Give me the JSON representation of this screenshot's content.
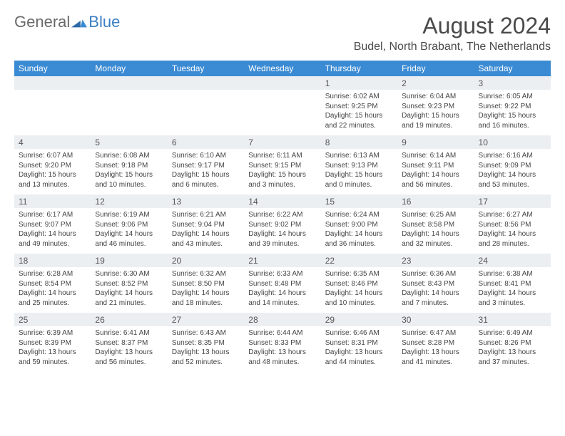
{
  "brand": {
    "general": "General",
    "blue": "Blue"
  },
  "title": "August 2024",
  "location": "Budel, North Brabant, The Netherlands",
  "colors": {
    "header_bg": "#3b8bd4",
    "header_text": "#ffffff",
    "daynum_bg": "#eceff1",
    "border": "#b8c4d0",
    "title_color": "#4a4a4a",
    "logo_gray": "#6a6a6a",
    "logo_blue": "#3b7fc4"
  },
  "days_of_week": [
    "Sunday",
    "Monday",
    "Tuesday",
    "Wednesday",
    "Thursday",
    "Friday",
    "Saturday"
  ],
  "weeks": [
    [
      {
        "n": "",
        "sr": "",
        "ss": "",
        "dl": ""
      },
      {
        "n": "",
        "sr": "",
        "ss": "",
        "dl": ""
      },
      {
        "n": "",
        "sr": "",
        "ss": "",
        "dl": ""
      },
      {
        "n": "",
        "sr": "",
        "ss": "",
        "dl": ""
      },
      {
        "n": "1",
        "sr": "Sunrise: 6:02 AM",
        "ss": "Sunset: 9:25 PM",
        "dl": "Daylight: 15 hours and 22 minutes."
      },
      {
        "n": "2",
        "sr": "Sunrise: 6:04 AM",
        "ss": "Sunset: 9:23 PM",
        "dl": "Daylight: 15 hours and 19 minutes."
      },
      {
        "n": "3",
        "sr": "Sunrise: 6:05 AM",
        "ss": "Sunset: 9:22 PM",
        "dl": "Daylight: 15 hours and 16 minutes."
      }
    ],
    [
      {
        "n": "4",
        "sr": "Sunrise: 6:07 AM",
        "ss": "Sunset: 9:20 PM",
        "dl": "Daylight: 15 hours and 13 minutes."
      },
      {
        "n": "5",
        "sr": "Sunrise: 6:08 AM",
        "ss": "Sunset: 9:18 PM",
        "dl": "Daylight: 15 hours and 10 minutes."
      },
      {
        "n": "6",
        "sr": "Sunrise: 6:10 AM",
        "ss": "Sunset: 9:17 PM",
        "dl": "Daylight: 15 hours and 6 minutes."
      },
      {
        "n": "7",
        "sr": "Sunrise: 6:11 AM",
        "ss": "Sunset: 9:15 PM",
        "dl": "Daylight: 15 hours and 3 minutes."
      },
      {
        "n": "8",
        "sr": "Sunrise: 6:13 AM",
        "ss": "Sunset: 9:13 PM",
        "dl": "Daylight: 15 hours and 0 minutes."
      },
      {
        "n": "9",
        "sr": "Sunrise: 6:14 AM",
        "ss": "Sunset: 9:11 PM",
        "dl": "Daylight: 14 hours and 56 minutes."
      },
      {
        "n": "10",
        "sr": "Sunrise: 6:16 AM",
        "ss": "Sunset: 9:09 PM",
        "dl": "Daylight: 14 hours and 53 minutes."
      }
    ],
    [
      {
        "n": "11",
        "sr": "Sunrise: 6:17 AM",
        "ss": "Sunset: 9:07 PM",
        "dl": "Daylight: 14 hours and 49 minutes."
      },
      {
        "n": "12",
        "sr": "Sunrise: 6:19 AM",
        "ss": "Sunset: 9:06 PM",
        "dl": "Daylight: 14 hours and 46 minutes."
      },
      {
        "n": "13",
        "sr": "Sunrise: 6:21 AM",
        "ss": "Sunset: 9:04 PM",
        "dl": "Daylight: 14 hours and 43 minutes."
      },
      {
        "n": "14",
        "sr": "Sunrise: 6:22 AM",
        "ss": "Sunset: 9:02 PM",
        "dl": "Daylight: 14 hours and 39 minutes."
      },
      {
        "n": "15",
        "sr": "Sunrise: 6:24 AM",
        "ss": "Sunset: 9:00 PM",
        "dl": "Daylight: 14 hours and 36 minutes."
      },
      {
        "n": "16",
        "sr": "Sunrise: 6:25 AM",
        "ss": "Sunset: 8:58 PM",
        "dl": "Daylight: 14 hours and 32 minutes."
      },
      {
        "n": "17",
        "sr": "Sunrise: 6:27 AM",
        "ss": "Sunset: 8:56 PM",
        "dl": "Daylight: 14 hours and 28 minutes."
      }
    ],
    [
      {
        "n": "18",
        "sr": "Sunrise: 6:28 AM",
        "ss": "Sunset: 8:54 PM",
        "dl": "Daylight: 14 hours and 25 minutes."
      },
      {
        "n": "19",
        "sr": "Sunrise: 6:30 AM",
        "ss": "Sunset: 8:52 PM",
        "dl": "Daylight: 14 hours and 21 minutes."
      },
      {
        "n": "20",
        "sr": "Sunrise: 6:32 AM",
        "ss": "Sunset: 8:50 PM",
        "dl": "Daylight: 14 hours and 18 minutes."
      },
      {
        "n": "21",
        "sr": "Sunrise: 6:33 AM",
        "ss": "Sunset: 8:48 PM",
        "dl": "Daylight: 14 hours and 14 minutes."
      },
      {
        "n": "22",
        "sr": "Sunrise: 6:35 AM",
        "ss": "Sunset: 8:46 PM",
        "dl": "Daylight: 14 hours and 10 minutes."
      },
      {
        "n": "23",
        "sr": "Sunrise: 6:36 AM",
        "ss": "Sunset: 8:43 PM",
        "dl": "Daylight: 14 hours and 7 minutes."
      },
      {
        "n": "24",
        "sr": "Sunrise: 6:38 AM",
        "ss": "Sunset: 8:41 PM",
        "dl": "Daylight: 14 hours and 3 minutes."
      }
    ],
    [
      {
        "n": "25",
        "sr": "Sunrise: 6:39 AM",
        "ss": "Sunset: 8:39 PM",
        "dl": "Daylight: 13 hours and 59 minutes."
      },
      {
        "n": "26",
        "sr": "Sunrise: 6:41 AM",
        "ss": "Sunset: 8:37 PM",
        "dl": "Daylight: 13 hours and 56 minutes."
      },
      {
        "n": "27",
        "sr": "Sunrise: 6:43 AM",
        "ss": "Sunset: 8:35 PM",
        "dl": "Daylight: 13 hours and 52 minutes."
      },
      {
        "n": "28",
        "sr": "Sunrise: 6:44 AM",
        "ss": "Sunset: 8:33 PM",
        "dl": "Daylight: 13 hours and 48 minutes."
      },
      {
        "n": "29",
        "sr": "Sunrise: 6:46 AM",
        "ss": "Sunset: 8:31 PM",
        "dl": "Daylight: 13 hours and 44 minutes."
      },
      {
        "n": "30",
        "sr": "Sunrise: 6:47 AM",
        "ss": "Sunset: 8:28 PM",
        "dl": "Daylight: 13 hours and 41 minutes."
      },
      {
        "n": "31",
        "sr": "Sunrise: 6:49 AM",
        "ss": "Sunset: 8:26 PM",
        "dl": "Daylight: 13 hours and 37 minutes."
      }
    ]
  ]
}
